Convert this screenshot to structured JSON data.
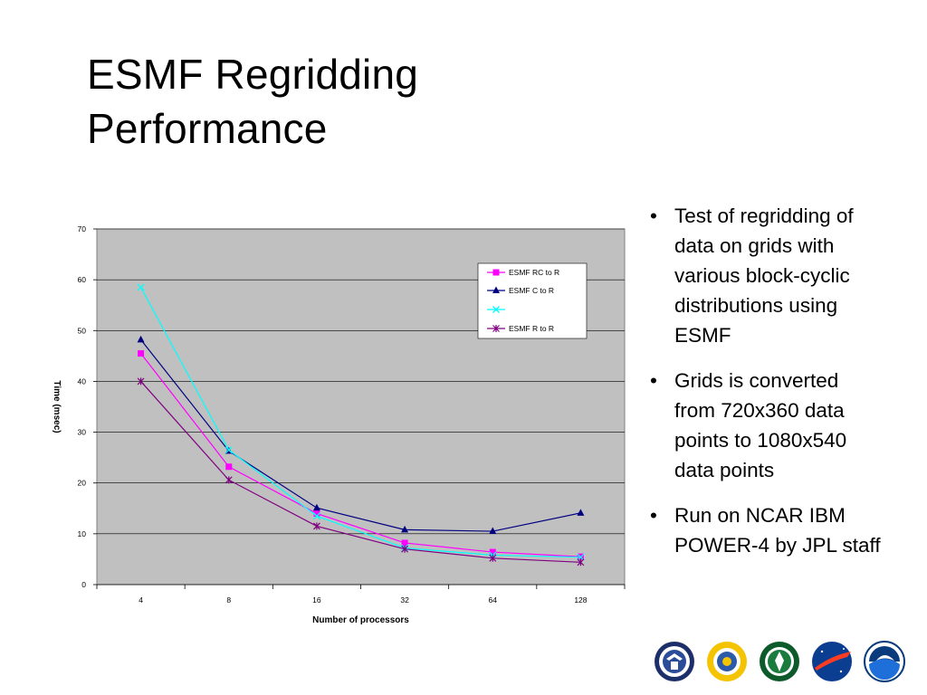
{
  "slide": {
    "title_line1": "ESMF Regridding",
    "title_line2": "Performance",
    "bullets": [
      "Test of regridding of data on grids with various block-cyclic distributions using ESMF",
      "Grids is converted from 720x360 data points to 1080x540 data points",
      "Run on NCAR IBM POWER-4 by JPL staff"
    ],
    "logos": [
      "department-of-defense-seal-icon",
      "nsf-seal-icon",
      "department-of-energy-seal-icon",
      "nasa-logo-icon",
      "noaa-logo-icon"
    ]
  },
  "chart_data": {
    "type": "line",
    "xlabel": "Number of processors",
    "ylabel": "Time (msec)",
    "categories": [
      "4",
      "8",
      "16",
      "32",
      "64",
      "128"
    ],
    "ylim": [
      0,
      70
    ],
    "yticks": [
      0,
      10,
      20,
      30,
      40,
      50,
      60,
      70
    ],
    "grid": true,
    "plot_background": "#c0c0c0",
    "legend_position": "top-right",
    "series": [
      {
        "name": "ESMF RC to R",
        "values": [
          45.5,
          23.2,
          14.0,
          8.2,
          6.4,
          5.5
        ],
        "color": "#ff00ff",
        "marker": "square",
        "in_legend": true
      },
      {
        "name": "ESMF C to R",
        "values": [
          48.2,
          26.3,
          15.1,
          10.8,
          10.5,
          14.1
        ],
        "color": "#000080",
        "marker": "triangle",
        "in_legend": true
      },
      {
        "name": "",
        "values": [
          58.5,
          26.5,
          13.5,
          7.2,
          5.8,
          5.4
        ],
        "color": "#00ffff",
        "marker": "x",
        "in_legend": true
      },
      {
        "name": "ESMF R to R",
        "values": [
          40.0,
          20.6,
          11.5,
          7.0,
          5.2,
          4.4
        ],
        "color": "#800080",
        "marker": "star",
        "in_legend": true
      }
    ]
  }
}
